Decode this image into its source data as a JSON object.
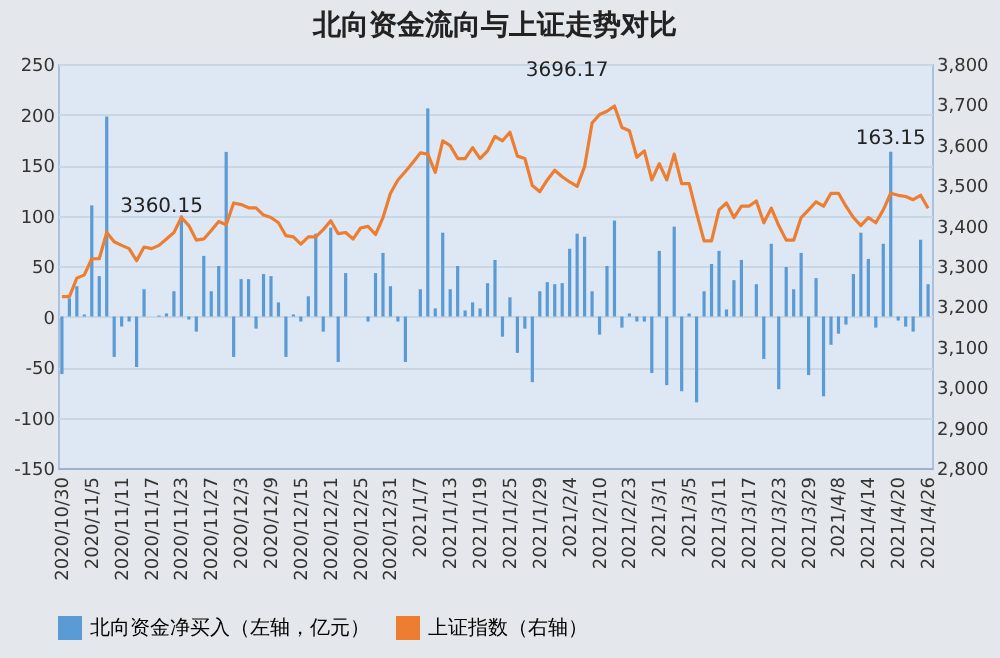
{
  "chart_data": {
    "type": "bar",
    "title": "北向资金流向与上证走势对比",
    "categories": [
      "2020/10/30",
      null,
      null,
      null,
      "2020/11/5",
      null,
      null,
      null,
      "2020/11/11",
      null,
      null,
      null,
      "2020/11/17",
      null,
      null,
      null,
      "2020/11/23",
      null,
      null,
      null,
      "2020/11/27",
      null,
      null,
      null,
      "2020/12/3",
      null,
      null,
      null,
      "2020/12/9",
      null,
      null,
      null,
      "2020/12/15",
      null,
      null,
      null,
      "2020/12/21",
      null,
      null,
      null,
      "2020/12/25",
      null,
      null,
      null,
      "2020/12/31",
      null,
      null,
      null,
      "2021/1/7",
      null,
      null,
      null,
      "2021/1/13",
      null,
      null,
      null,
      "2021/1/19",
      null,
      null,
      null,
      "2021/1/25",
      null,
      null,
      null,
      "2021/1/29",
      null,
      null,
      null,
      "2021/2/4",
      null,
      null,
      null,
      "2021/2/10",
      null,
      null,
      null,
      "2021/2/23",
      null,
      null,
      null,
      "2021/3/1",
      null,
      null,
      null,
      "2021/3/5",
      null,
      null,
      null,
      "2021/3/11",
      null,
      null,
      null,
      "2021/3/17",
      null,
      null,
      null,
      "2021/3/23",
      null,
      null,
      null,
      "2021/3/29",
      null,
      null,
      null,
      "2021/4/8",
      null,
      null,
      null,
      "2021/4/14",
      null,
      null,
      null,
      "2021/4/20",
      null,
      null,
      null,
      "2021/4/26"
    ],
    "series": [
      {
        "name": "北向资金净买入（左轴，亿元）",
        "color": "#5b9bd5",
        "values": [
          -57,
          18,
          30,
          2,
          110,
          40,
          198,
          -40,
          -10,
          -5,
          -50,
          27,
          0,
          1,
          3,
          25,
          100,
          -3,
          -15,
          60,
          25,
          50,
          163,
          -40,
          37,
          37,
          -12,
          42,
          40,
          14,
          -40,
          2,
          -5,
          20,
          82,
          -15,
          88,
          -45,
          43,
          0,
          0,
          -5,
          43,
          63,
          30,
          -5,
          -45,
          0,
          27,
          206,
          8,
          83,
          27,
          50,
          6,
          14,
          8,
          33,
          56,
          -20,
          19,
          -36,
          -12,
          -65,
          25,
          34,
          32,
          33,
          67,
          82,
          79,
          25,
          -18,
          50,
          95,
          -11,
          3,
          -5,
          -5,
          -56,
          65,
          -68,
          89,
          -74,
          3,
          -85,
          25,
          52,
          65,
          7,
          36,
          56,
          0,
          32,
          -42,
          72,
          -72,
          49,
          27,
          63,
          -58,
          38,
          -79,
          -28,
          -17,
          -8,
          42,
          83,
          57,
          -11,
          72,
          163.15,
          -4,
          -10,
          -15,
          76,
          32
        ],
        "value_labels": [
          null,
          null,
          null,
          null,
          null,
          null,
          null,
          null,
          null,
          null,
          null,
          null,
          null,
          null,
          null,
          null,
          null,
          null,
          null,
          null,
          null,
          null,
          null,
          null,
          null,
          null,
          null,
          null,
          null,
          null,
          null,
          null,
          null,
          null,
          null,
          null,
          null,
          null,
          null,
          null,
          null,
          null,
          null,
          null,
          null,
          null,
          null,
          null,
          null,
          null,
          null,
          null,
          null,
          null,
          null,
          null,
          null,
          null,
          null,
          null,
          null,
          null,
          null,
          null,
          null,
          null,
          null,
          null,
          null,
          null,
          null,
          null,
          null,
          null,
          null,
          null,
          null,
          null,
          null,
          null,
          null,
          null,
          null,
          null,
          null,
          null,
          null,
          null,
          null,
          null,
          null,
          null,
          null,
          null,
          null,
          null,
          null,
          null,
          null,
          null,
          null,
          null,
          null,
          null,
          null,
          null,
          null,
          null,
          null,
          null,
          null,
          "163.15",
          null,
          null,
          null,
          null,
          null
        ]
      },
      {
        "name": "上证指数（右轴）",
        "type": "line",
        "axis": "y2",
        "color": "#ed7d31",
        "values": [
          3224,
          3224,
          3270,
          3278,
          3318,
          3318,
          3383,
          3360.15,
          3351,
          3343,
          3313,
          3347,
          3343,
          3351,
          3367,
          3383,
          3420,
          3400,
          3364,
          3367,
          3388,
          3410,
          3402,
          3456,
          3452,
          3444,
          3444,
          3426,
          3420,
          3407,
          3375,
          3372,
          3354,
          3372,
          3372,
          3390,
          3412,
          3380,
          3383,
          3367,
          3394,
          3398,
          3378,
          3420,
          3480,
          3513,
          3534,
          3556,
          3580,
          3577,
          3532,
          3610,
          3598,
          3566,
          3566,
          3593,
          3566,
          3585,
          3621,
          3610,
          3631,
          3572,
          3566,
          3499,
          3484,
          3513,
          3537,
          3521,
          3508,
          3497,
          3546,
          3654,
          3675,
          3683,
          3696.17,
          3643,
          3635,
          3569,
          3585,
          3513,
          3553,
          3513,
          3577,
          3504,
          3504,
          3431,
          3362,
          3362,
          3439,
          3456,
          3420,
          3448,
          3448,
          3461,
          3407,
          3443,
          3400,
          3364,
          3364,
          3420,
          3439,
          3459,
          3448,
          3480,
          3480,
          3448,
          3420,
          3400,
          3420,
          3407,
          3439,
          3480,
          3475,
          3472,
          3464,
          3475,
          3443
        ],
        "value_labels": [
          null,
          null,
          null,
          null,
          null,
          null,
          null,
          "3360.15",
          null,
          null,
          null,
          null,
          null,
          null,
          null,
          null,
          null,
          null,
          null,
          null,
          null,
          null,
          null,
          null,
          null,
          null,
          null,
          null,
          null,
          null,
          null,
          null,
          null,
          null,
          null,
          null,
          null,
          null,
          null,
          null,
          null,
          null,
          null,
          null,
          null,
          null,
          null,
          null,
          null,
          null,
          null,
          null,
          null,
          null,
          null,
          null,
          null,
          null,
          null,
          null,
          null,
          null,
          null,
          null,
          null,
          null,
          null,
          null,
          null,
          null,
          null,
          null,
          null,
          null,
          "3696.17",
          null,
          null,
          null,
          null,
          null,
          null,
          null,
          null,
          null,
          null,
          null,
          null,
          null,
          null,
          null,
          null,
          null,
          null,
          null,
          null,
          null,
          null,
          null,
          null,
          null,
          null,
          null,
          null,
          null,
          null,
          null,
          null,
          null,
          null,
          null,
          null,
          null,
          null,
          null,
          null,
          null,
          null
        ]
      }
    ],
    "ylim": [
      -150,
      250
    ],
    "yticks": [
      -150,
      -100,
      -50,
      0,
      50,
      100,
      150,
      200,
      250
    ],
    "y2lim": [
      2800,
      3800
    ],
    "y2ticks": [
      {
        "value": 2800,
        "label": "2,800"
      },
      {
        "value": 2900,
        "label": "2,900"
      },
      {
        "value": 3000,
        "label": "3,000"
      },
      {
        "value": 3100,
        "label": "3,100"
      },
      {
        "value": 3200,
        "label": "3,200"
      },
      {
        "value": 3300,
        "label": "3,300"
      },
      {
        "value": 3400,
        "label": "3,400"
      },
      {
        "value": 3500,
        "label": "3,500"
      },
      {
        "value": 3600,
        "label": "3,600"
      },
      {
        "value": 3700,
        "label": "3,700"
      },
      {
        "value": 3800,
        "label": "3,800"
      }
    ],
    "grid": "y",
    "legend": "bottom"
  }
}
